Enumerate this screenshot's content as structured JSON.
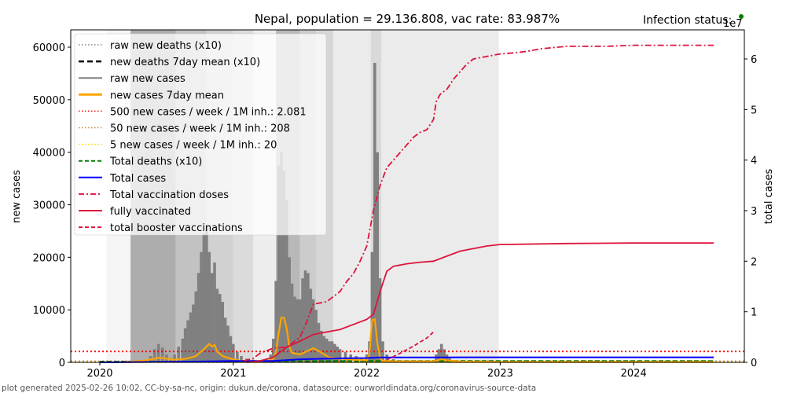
{
  "chart_data": {
    "type": "line",
    "title": "Nepal, population = 29.136.808, vac rate: 83.987%",
    "status_label": "Infection status:",
    "status_color": "#008000",
    "right_axis_exponent": "1e7",
    "footer": "plot generated 2025-02-26 10:02, CC-by-sa-nc, origin: dukun.de/corona, datasource: ourworldindata.org/coronavirus-source-data",
    "xlabel": "",
    "ylabel_left": "new cases",
    "ylabel_right": "total cases",
    "x_range": [
      2019.8,
      2024.85
    ],
    "ylim_left": [
      0,
      63000
    ],
    "ylim_right": [
      0,
      6.6
    ],
    "x_ticks": [
      {
        "value": 2020,
        "label": "2020"
      },
      {
        "value": 2021,
        "label": "2021"
      },
      {
        "value": 2022,
        "label": "2022"
      },
      {
        "value": 2023,
        "label": "2023"
      },
      {
        "value": 2024,
        "label": "2024"
      }
    ],
    "y_ticks_left": [
      {
        "value": 0,
        "label": "0"
      },
      {
        "value": 10000,
        "label": "10000"
      },
      {
        "value": 20000,
        "label": "20000"
      },
      {
        "value": 30000,
        "label": "30000"
      },
      {
        "value": 40000,
        "label": "40000"
      },
      {
        "value": 50000,
        "label": "50000"
      },
      {
        "value": 60000,
        "label": "60000"
      }
    ],
    "y_ticks_right": [
      {
        "value": 0,
        "label": "0"
      },
      {
        "value": 1,
        "label": "1"
      },
      {
        "value": 2,
        "label": "2"
      },
      {
        "value": 3,
        "label": "3"
      },
      {
        "value": 4,
        "label": "4"
      },
      {
        "value": 5,
        "label": "5"
      },
      {
        "value": 6,
        "label": "6"
      }
    ],
    "legend": {
      "placement": "top-left",
      "entries": [
        {
          "label": "raw new deaths (x10)",
          "color": "#808080",
          "style": "dotted"
        },
        {
          "label": "new deaths 7day mean (x10)",
          "color": "#000000",
          "style": "dashed-bold"
        },
        {
          "label": "raw new cases",
          "color": "#808080",
          "style": "solid"
        },
        {
          "label": "new cases 7day mean",
          "color": "#FFA500",
          "style": "solid-bold"
        },
        {
          "label": "500 new cases / week / 1M inh.: 2.081",
          "color": "#FF0000",
          "style": "dotted"
        },
        {
          "label": "50 new cases / week / 1M inh.: 208",
          "color": "#CD853F",
          "style": "dotted"
        },
        {
          "label": "5 new cases / week / 1M inh.: 20",
          "color": "#FFD700",
          "style": "dotted"
        },
        {
          "label": "Total deaths (x10)",
          "color": "#008000",
          "style": "dashed"
        },
        {
          "label": "Total cases",
          "color": "#0000FF",
          "style": "solid"
        },
        {
          "label": "Total vaccination doses",
          "color": "#DC143C",
          "style": "dashdot"
        },
        {
          "label": "fully vaccinated",
          "color": "#DC143C",
          "style": "solid"
        },
        {
          "label": "total booster vaccinations",
          "color": "#DC143C",
          "style": "dashed"
        }
      ]
    },
    "threshold_lines": [
      {
        "name": "500-per-week",
        "value": 2081,
        "color": "#FF0000"
      },
      {
        "name": "50-per-week",
        "value": 208,
        "color": "#CD853F"
      },
      {
        "name": "5-per-week",
        "value": 20,
        "color": "#FFD700"
      }
    ],
    "background_bands": [
      {
        "from": 2020.05,
        "to": 2020.23,
        "shade": 0.04
      },
      {
        "from": 2020.23,
        "to": 2020.57,
        "shade": 0.32
      },
      {
        "from": 2020.57,
        "to": 2020.8,
        "shade": 0.24
      },
      {
        "from": 2020.8,
        "to": 2021.0,
        "shade": 0.18
      },
      {
        "from": 2021.0,
        "to": 2021.15,
        "shade": 0.14
      },
      {
        "from": 2021.15,
        "to": 2021.32,
        "shade": 0.07
      },
      {
        "from": 2021.32,
        "to": 2021.5,
        "shade": 0.28
      },
      {
        "from": 2021.5,
        "to": 2021.62,
        "shade": 0.2
      },
      {
        "from": 2021.62,
        "to": 2021.75,
        "shade": 0.16
      },
      {
        "from": 2021.75,
        "to": 2022.03,
        "shade": 0.08
      },
      {
        "from": 2022.03,
        "to": 2022.11,
        "shade": 0.15
      },
      {
        "from": 2022.11,
        "to": 2022.99,
        "shade": 0.08
      }
    ],
    "raw_new_cases": {
      "x": [
        2020.35,
        2020.38,
        2020.41,
        2020.44,
        2020.47,
        2020.5,
        2020.53,
        2020.56,
        2020.59,
        2020.62,
        2020.64,
        2020.66,
        2020.68,
        2020.7,
        2020.72,
        2020.74,
        2020.76,
        2020.78,
        2020.8,
        2020.82,
        2020.84,
        2020.86,
        2020.88,
        2020.9,
        2020.92,
        2020.94,
        2020.96,
        2020.98,
        2021.0,
        2021.03,
        2021.06,
        2021.1,
        2021.15,
        2021.2,
        2021.25,
        2021.28,
        2021.3,
        2021.32,
        2021.34,
        2021.36,
        2021.38,
        2021.4,
        2021.42,
        2021.44,
        2021.46,
        2021.48,
        2021.5,
        2021.52,
        2021.54,
        2021.56,
        2021.58,
        2021.6,
        2021.62,
        2021.64,
        2021.66,
        2021.68,
        2021.7,
        2021.72,
        2021.74,
        2021.76,
        2021.78,
        2021.8,
        2021.84,
        2021.88,
        2021.92,
        2021.96,
        2022.0,
        2022.02,
        2022.04,
        2022.06,
        2022.08,
        2022.1,
        2022.12,
        2022.15,
        2022.2,
        2022.3,
        2022.5,
        2022.52,
        2022.54,
        2022.56,
        2022.58,
        2022.6,
        2022.62,
        2022.64,
        2022.7,
        2022.8,
        2023.3,
        2023.35
      ],
      "values": [
        300,
        1200,
        2500,
        3500,
        2800,
        1500,
        800,
        1500,
        3000,
        4500,
        6500,
        8000,
        9500,
        11000,
        13500,
        17000,
        21000,
        24500,
        26000,
        21000,
        17000,
        19000,
        14000,
        13000,
        11500,
        8500,
        7000,
        5000,
        3500,
        2000,
        1200,
        700,
        500,
        400,
        600,
        1500,
        4500,
        15500,
        37500,
        40000,
        36500,
        31000,
        20000,
        15000,
        12500,
        12000,
        12000,
        16000,
        17500,
        17000,
        14000,
        12000,
        10000,
        7500,
        6000,
        5000,
        4500,
        4000,
        4000,
        3500,
        3000,
        2500,
        2000,
        1500,
        1200,
        800,
        1500,
        4000,
        21000,
        57000,
        40000,
        16000,
        4000,
        1500,
        600,
        300,
        400,
        1500,
        2500,
        3500,
        2500,
        1500,
        800,
        300,
        100,
        50,
        200,
        300
      ]
    },
    "new_cases_7day_mean": {
      "x": [
        2020.2,
        2020.35,
        2020.45,
        2020.55,
        2020.65,
        2020.72,
        2020.78,
        2020.82,
        2020.84,
        2020.86,
        2020.88,
        2020.92,
        2020.98,
        2021.05,
        2021.15,
        2021.25,
        2021.3,
        2021.32,
        2021.34,
        2021.36,
        2021.38,
        2021.4,
        2021.42,
        2021.44,
        2021.5,
        2021.56,
        2021.6,
        2021.65,
        2021.72,
        2021.8,
        2021.9,
        2022.0,
        2022.02,
        2022.04,
        2022.06,
        2022.08,
        2022.1,
        2022.12,
        2022.2,
        2022.5,
        2022.56,
        2022.6,
        2022.7,
        2023.0,
        2024.6
      ],
      "values": [
        50,
        400,
        900,
        500,
        700,
        1200,
        2500,
        3500,
        3000,
        3300,
        2000,
        1200,
        700,
        300,
        150,
        200,
        600,
        2000,
        5500,
        8500,
        8500,
        6500,
        3000,
        1800,
        1500,
        2200,
        2700,
        2000,
        900,
        700,
        500,
        400,
        1500,
        8000,
        8200,
        3500,
        800,
        300,
        200,
        200,
        600,
        400,
        150,
        80,
        80
      ]
    },
    "total_cases_e7": {
      "x": [
        2020.0,
        2020.5,
        2021.0,
        2021.3,
        2021.5,
        2021.8,
        2022.0,
        2022.1,
        2022.5,
        2022.7,
        2024.6
      ],
      "values": [
        0.0,
        0.01,
        0.026,
        0.028,
        0.06,
        0.08,
        0.085,
        0.097,
        0.098,
        0.1,
        0.1
      ]
    },
    "total_deaths_x10_e7": {
      "x": [
        2020.0,
        2021.0,
        2021.5,
        2022.0,
        2024.6
      ],
      "values": [
        0.0,
        0.002,
        0.008,
        0.012,
        0.012
      ]
    },
    "total_vaccination_doses_e7": {
      "x": [
        2021.08,
        2021.15,
        2021.2,
        2021.3,
        2021.4,
        2021.5,
        2021.55,
        2021.6,
        2021.7,
        2021.8,
        2021.85,
        2021.9,
        2021.95,
        2022.0,
        2022.05,
        2022.1,
        2022.15,
        2022.2,
        2022.25,
        2022.3,
        2022.35,
        2022.4,
        2022.45,
        2022.5,
        2022.52,
        2022.55,
        2022.6,
        2022.65,
        2022.7,
        2022.75,
        2022.8,
        2022.9,
        2023.0,
        2023.1,
        2023.2,
        2023.3,
        2023.5,
        2023.8,
        2024.0,
        2024.3,
        2024.6
      ],
      "values": [
        0.03,
        0.08,
        0.18,
        0.28,
        0.3,
        0.5,
        0.8,
        1.15,
        1.2,
        1.4,
        1.6,
        1.75,
        2.0,
        2.3,
        3.0,
        3.5,
        3.85,
        4.0,
        4.15,
        4.3,
        4.45,
        4.55,
        4.6,
        4.8,
        5.15,
        5.3,
        5.4,
        5.6,
        5.75,
        5.9,
        6.0,
        6.05,
        6.1,
        6.12,
        6.15,
        6.2,
        6.25,
        6.25,
        6.27,
        6.27,
        6.27
      ]
    },
    "fully_vaccinated_e7": {
      "x": [
        2021.1,
        2021.2,
        2021.3,
        2021.4,
        2021.5,
        2021.6,
        2021.7,
        2021.8,
        2021.9,
        2022.0,
        2022.05,
        2022.1,
        2022.15,
        2022.2,
        2022.3,
        2022.4,
        2022.5,
        2022.6,
        2022.7,
        2022.8,
        2022.9,
        2023.0,
        2023.5,
        2024.0,
        2024.6
      ],
      "values": [
        0.0,
        0.03,
        0.1,
        0.3,
        0.42,
        0.55,
        0.6,
        0.65,
        0.75,
        0.85,
        0.95,
        1.4,
        1.8,
        1.9,
        1.95,
        1.98,
        2.0,
        2.1,
        2.2,
        2.25,
        2.3,
        2.33,
        2.35,
        2.36,
        2.36
      ]
    },
    "total_booster_vaccinations_e7": {
      "x": [
        2022.15,
        2022.25,
        2022.35,
        2022.45,
        2022.5
      ],
      "values": [
        0.05,
        0.18,
        0.32,
        0.48,
        0.6
      ]
    }
  }
}
